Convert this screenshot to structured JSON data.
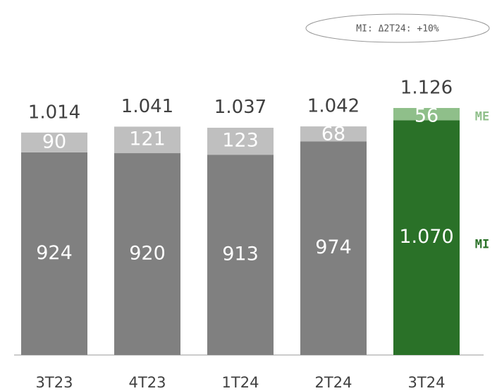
{
  "chart_data": {
    "type": "stacked_bar",
    "annotation": "MI: Δ2T24: +10%",
    "categories": [
      "3T23",
      "4T23",
      "1T24",
      "2T24",
      "3T24"
    ],
    "series": [
      {
        "name": "MI",
        "color": "#2a7128",
        "colors": [
          "#808080",
          "#808080",
          "#808080",
          "#808080",
          "#2a7128"
        ],
        "values": [
          924,
          920,
          913,
          974,
          1070
        ],
        "value_labels": [
          "924",
          "920",
          "913",
          "974",
          "1.070"
        ]
      },
      {
        "name": "ME",
        "color": "#8fbf8a",
        "colors": [
          "#bfbfbf",
          "#bfbfbf",
          "#bfbfbf",
          "#bfbfbf",
          "#8fbf8a"
        ],
        "values": [
          90,
          121,
          123,
          68,
          56
        ],
        "value_labels": [
          "90",
          "121",
          "123",
          "68",
          "56"
        ]
      }
    ],
    "totals": {
      "values": [
        1014,
        1041,
        1037,
        1042,
        1126
      ],
      "value_labels": [
        "1.014",
        "1.041",
        "1.037",
        "1.042",
        "1.126"
      ]
    }
  }
}
